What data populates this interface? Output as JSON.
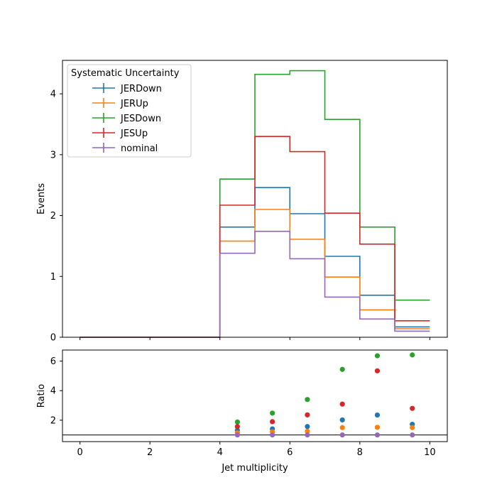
{
  "chart_data": [
    {
      "type": "line",
      "style": "step-histogram",
      "panel": "main",
      "xlabel": "",
      "ylabel": "Events",
      "xlim": [
        -0.5,
        10.5
      ],
      "ylim": [
        0,
        4.55
      ],
      "bin_edges": [
        0,
        1,
        2,
        3,
        4,
        5,
        6,
        7,
        8,
        9,
        10
      ],
      "yticks": [
        0,
        1,
        2,
        3,
        4
      ],
      "xticks_labels_shown": false,
      "legend": {
        "title": "Systematic Uncertainty",
        "placement": "top-left"
      },
      "series": [
        {
          "name": "JERDown",
          "color": "#1f77b4",
          "values": [
            0,
            0,
            0,
            0,
            1.81,
            2.46,
            2.03,
            1.33,
            0.69,
            0.17
          ]
        },
        {
          "name": "JERUp",
          "color": "#ff7f0e",
          "values": [
            0,
            0,
            0,
            0,
            1.58,
            2.1,
            1.61,
            0.99,
            0.45,
            0.14
          ]
        },
        {
          "name": "JESDown",
          "color": "#2ca02c",
          "values": [
            0,
            0,
            0,
            0,
            2.6,
            4.32,
            4.38,
            3.58,
            1.81,
            0.61
          ]
        },
        {
          "name": "JESUp",
          "color": "#d62728",
          "values": [
            0,
            0,
            0,
            0,
            2.17,
            3.3,
            3.05,
            2.04,
            1.53,
            0.27
          ]
        },
        {
          "name": "nominal",
          "color": "#9467bd",
          "values": [
            0,
            0,
            0,
            0,
            1.38,
            1.74,
            1.29,
            0.66,
            0.3,
            0.1
          ]
        }
      ]
    },
    {
      "type": "scatter",
      "panel": "ratio",
      "xlabel": "Jet multiplicity",
      "ylabel": "Ratio",
      "xlim": [
        -0.5,
        10.5
      ],
      "ylim": [
        0.55,
        6.75
      ],
      "yticks": [
        2,
        4,
        6
      ],
      "xticks": [
        0,
        2,
        4,
        6,
        8,
        10
      ],
      "reference_line": 1,
      "x": [
        4.5,
        5.5,
        6.5,
        7.5,
        8.5,
        9.5
      ],
      "series": [
        {
          "name": "JERDown",
          "color": "#1f77b4",
          "values": [
            1.31,
            1.41,
            1.57,
            2.02,
            2.35,
            1.72
          ]
        },
        {
          "name": "JERUp",
          "color": "#ff7f0e",
          "values": [
            1.14,
            1.21,
            1.25,
            1.5,
            1.52,
            1.5
          ]
        },
        {
          "name": "JESDown",
          "color": "#2ca02c",
          "values": [
            1.88,
            2.48,
            3.4,
            5.44,
            6.36,
            6.42
          ]
        },
        {
          "name": "JESUp",
          "color": "#d62728",
          "values": [
            1.57,
            1.9,
            2.36,
            3.09,
            5.34,
            2.8
          ]
        },
        {
          "name": "nominal",
          "color": "#9467bd",
          "values": [
            1.0,
            1.0,
            1.0,
            1.0,
            1.0,
            1.0
          ]
        }
      ]
    }
  ]
}
